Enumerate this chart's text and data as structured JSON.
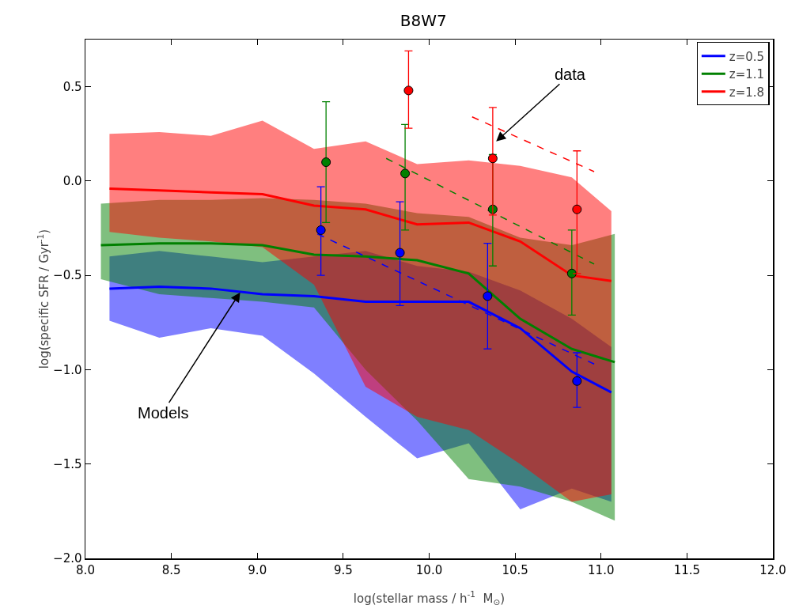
{
  "chart_data": {
    "type": "line",
    "title": "B8W7",
    "xlabel": "log(stellar mass / h$^{-1}$  M$_{⊙}$)",
    "ylabel": "log(specific SFR / Gyr$^{-1}$)",
    "xlim": [
      8,
      12
    ],
    "ylim": [
      -2,
      0.75
    ],
    "xticks": [
      {
        "value": 8,
        "label": "8.0"
      },
      {
        "value": 8.5,
        "label": "8.5"
      },
      {
        "value": 9,
        "label": "9.0"
      },
      {
        "value": 9.5,
        "label": "9.5"
      },
      {
        "value": 10,
        "label": "10.0"
      },
      {
        "value": 10.5,
        "label": "10.5"
      },
      {
        "value": 11,
        "label": "11.0"
      },
      {
        "value": 11.5,
        "label": "11.5"
      },
      {
        "value": 12,
        "label": "12.0"
      }
    ],
    "yticks": [
      {
        "value": -2,
        "label": "−2.0"
      },
      {
        "value": -1.5,
        "label": "−1.5"
      },
      {
        "value": -1,
        "label": "−1.0"
      },
      {
        "value": -0.5,
        "label": "−0.5"
      },
      {
        "value": 0,
        "label": "0.0"
      },
      {
        "value": 0.5,
        "label": "0.5"
      }
    ],
    "grid": false,
    "legend": "top right",
    "annotations": [
      {
        "text": "data",
        "x": 10.39,
        "y": 0.21
      },
      {
        "text": "Models",
        "x": 8.9,
        "y": -0.59
      }
    ],
    "series": [
      {
        "name": "z=0.5",
        "color": "#0000ff",
        "marker": "none",
        "line_style": "solid",
        "x": [
          8.14,
          8.43,
          8.73,
          9.03,
          9.33,
          9.63,
          9.93,
          10.23,
          10.53,
          10.83,
          11.06
        ],
        "values": [
          -0.57,
          -0.56,
          -0.57,
          -0.6,
          -0.61,
          -0.64,
          -0.64,
          -0.64,
          -0.78,
          -1.01,
          -1.12
        ],
        "upper": [
          -0.4,
          -0.37,
          -0.4,
          -0.43,
          -0.4,
          -0.37,
          -0.45,
          -0.48,
          -0.58,
          -0.73,
          -0.88
        ],
        "lower": [
          -0.74,
          -0.83,
          -0.78,
          -0.82,
          -1.02,
          -1.25,
          -1.47,
          -1.39,
          -1.74,
          -1.63,
          -1.7
        ]
      },
      {
        "name": "z=1.1",
        "color": "#008000",
        "marker": "none",
        "line_style": "solid",
        "x": [
          8.09,
          8.43,
          8.73,
          9.03,
          9.33,
          9.63,
          9.93,
          10.23,
          10.53,
          10.83,
          11.08
        ],
        "values": [
          -0.34,
          -0.33,
          -0.33,
          -0.34,
          -0.39,
          -0.4,
          -0.42,
          -0.49,
          -0.73,
          -0.89,
          -0.96
        ],
        "upper": [
          -0.12,
          -0.1,
          -0.1,
          -0.09,
          -0.1,
          -0.12,
          -0.17,
          -0.19,
          -0.3,
          -0.34,
          -0.28
        ],
        "lower": [
          -0.52,
          -0.6,
          -0.62,
          -0.64,
          -0.67,
          -1,
          -1.27,
          -1.58,
          -1.62,
          -1.7,
          -1.8
        ]
      },
      {
        "name": "z=1.8",
        "color": "#ff0000",
        "marker": "none",
        "line_style": "solid",
        "x": [
          8.14,
          8.43,
          8.73,
          9.03,
          9.33,
          9.63,
          9.93,
          10.23,
          10.53,
          10.83,
          11.06
        ],
        "values": [
          -0.04,
          -0.05,
          -0.06,
          -0.07,
          -0.13,
          -0.15,
          -0.23,
          -0.22,
          -0.32,
          -0.5,
          -0.53
        ],
        "upper": [
          0.25,
          0.26,
          0.24,
          0.32,
          0.17,
          0.21,
          0.09,
          0.11,
          0.08,
          0.02,
          -0.16
        ],
        "lower": [
          -0.27,
          -0.3,
          -0.32,
          -0.35,
          -0.55,
          -1.09,
          -1.25,
          -1.32,
          -1.5,
          -1.7,
          -1.66
        ]
      },
      {
        "type": "line",
        "color": "#0000ff",
        "marker": "none",
        "line_style": "dashed",
        "x": [
          9.35,
          10.96
        ],
        "values": [
          -0.28,
          -0.97
        ]
      },
      {
        "type": "line",
        "color": "#008000",
        "marker": "none",
        "line_style": "dashed",
        "x": [
          9.75,
          10.96
        ],
        "values": [
          0.12,
          -0.44
        ]
      },
      {
        "type": "line",
        "color": "#ff0000",
        "marker": "none",
        "line_style": "dashed",
        "x": [
          10.25,
          10.96
        ],
        "values": [
          0.34,
          0.05
        ]
      },
      {
        "type": "scatter",
        "color": "#0000ff",
        "marker": "circle",
        "x": [
          9.37,
          9.83,
          10.34,
          10.86
        ],
        "values": [
          -0.26,
          -0.38,
          -0.61,
          -1.06
        ],
        "errors": [
          [
            -0.5,
            -0.03
          ],
          [
            -0.66,
            -0.11
          ],
          [
            -0.89,
            -0.33
          ],
          [
            -1.2,
            -0.91
          ]
        ]
      },
      {
        "type": "scatter",
        "color": "#008000",
        "marker": "circle",
        "x": [
          9.4,
          9.86,
          10.37,
          10.83
        ],
        "values": [
          0.1,
          0.04,
          -0.15,
          -0.49
        ],
        "errors": [
          [
            -0.22,
            0.42
          ],
          [
            -0.26,
            0.3
          ],
          [
            -0.45,
            0.14
          ],
          [
            -0.71,
            -0.26
          ]
        ]
      },
      {
        "type": "scatter",
        "color": "#ff0000",
        "marker": "circle",
        "x": [
          9.88,
          10.37,
          10.86
        ],
        "values": [
          0.48,
          0.12,
          -0.15
        ],
        "errors": [
          [
            0.28,
            0.69
          ],
          [
            -0.18,
            0.39
          ],
          [
            -0.49,
            0.16
          ]
        ]
      }
    ]
  }
}
